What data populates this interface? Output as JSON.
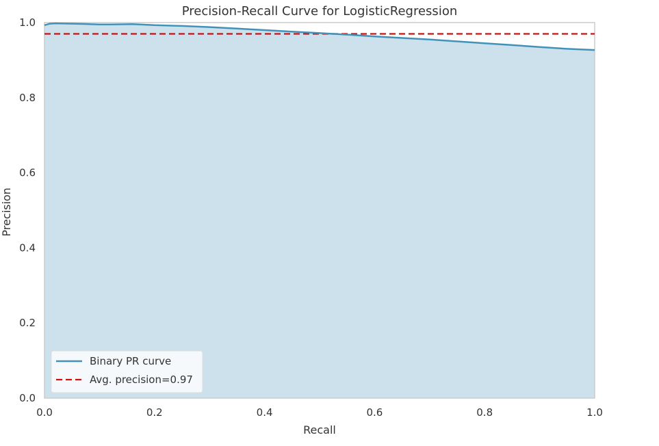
{
  "chart_data": {
    "type": "area",
    "title": "Precision-Recall Curve for LogisticRegression",
    "xlabel": "Recall",
    "ylabel": "Precision",
    "xlim": [
      0.0,
      1.0
    ],
    "ylim": [
      0.0,
      1.0
    ],
    "x_ticks": [
      "0.0",
      "0.2",
      "0.4",
      "0.6",
      "0.8",
      "1.0"
    ],
    "y_ticks": [
      "0.0",
      "0.2",
      "0.4",
      "0.6",
      "0.8",
      "1.0"
    ],
    "grid": false,
    "legend_position": "lower-left",
    "series": [
      {
        "name": "Binary PR curve",
        "style": "solid",
        "color": "#4292b8",
        "fill_color": "#cce1ec",
        "x": [
          0.0,
          0.01,
          0.02,
          0.05,
          0.08,
          0.1,
          0.12,
          0.16,
          0.2,
          0.25,
          0.3,
          0.35,
          0.4,
          0.45,
          0.5,
          0.55,
          0.6,
          0.65,
          0.7,
          0.75,
          0.8,
          0.85,
          0.9,
          0.95,
          1.0
        ],
        "y": [
          0.993,
          0.997,
          0.998,
          0.997,
          0.996,
          0.995,
          0.995,
          0.996,
          0.993,
          0.991,
          0.988,
          0.984,
          0.98,
          0.976,
          0.972,
          0.968,
          0.963,
          0.959,
          0.955,
          0.95,
          0.945,
          0.94,
          0.935,
          0.93,
          0.927
        ]
      },
      {
        "name": "Avg. precision=0.97",
        "style": "dashed",
        "color": "#cc1111",
        "x": [
          0.0,
          1.0
        ],
        "y": [
          0.97,
          0.97
        ]
      }
    ]
  }
}
